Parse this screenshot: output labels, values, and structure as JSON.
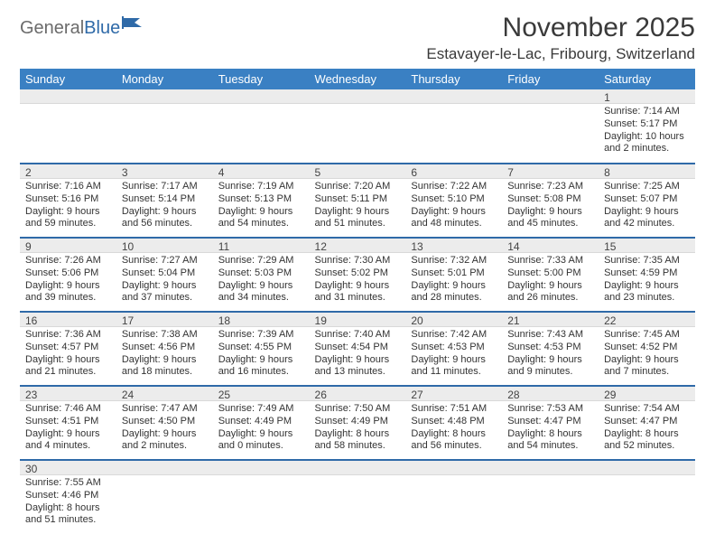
{
  "logo": {
    "general": "General",
    "blue": "Blue"
  },
  "title": "November 2025",
  "location": "Estavayer-le-Lac, Fribourg, Switzerland",
  "colors": {
    "header_bg": "#3a80c3",
    "header_text": "#ffffff",
    "daynum_bg": "#ececec",
    "week_border": "#2f6aa8",
    "title_color": "#3a3a3a",
    "logo_gray": "#6b6b6b",
    "logo_blue": "#2f6aa8"
  },
  "weekdays": [
    "Sunday",
    "Monday",
    "Tuesday",
    "Wednesday",
    "Thursday",
    "Friday",
    "Saturday"
  ],
  "weeks": [
    [
      {
        "blank": true
      },
      {
        "blank": true
      },
      {
        "blank": true
      },
      {
        "blank": true
      },
      {
        "blank": true
      },
      {
        "blank": true
      },
      {
        "day": "1",
        "sunrise": "Sunrise: 7:14 AM",
        "sunset": "Sunset: 5:17 PM",
        "daylight1": "Daylight: 10 hours",
        "daylight2": "and 2 minutes."
      }
    ],
    [
      {
        "day": "2",
        "sunrise": "Sunrise: 7:16 AM",
        "sunset": "Sunset: 5:16 PM",
        "daylight1": "Daylight: 9 hours",
        "daylight2": "and 59 minutes."
      },
      {
        "day": "3",
        "sunrise": "Sunrise: 7:17 AM",
        "sunset": "Sunset: 5:14 PM",
        "daylight1": "Daylight: 9 hours",
        "daylight2": "and 56 minutes."
      },
      {
        "day": "4",
        "sunrise": "Sunrise: 7:19 AM",
        "sunset": "Sunset: 5:13 PM",
        "daylight1": "Daylight: 9 hours",
        "daylight2": "and 54 minutes."
      },
      {
        "day": "5",
        "sunrise": "Sunrise: 7:20 AM",
        "sunset": "Sunset: 5:11 PM",
        "daylight1": "Daylight: 9 hours",
        "daylight2": "and 51 minutes."
      },
      {
        "day": "6",
        "sunrise": "Sunrise: 7:22 AM",
        "sunset": "Sunset: 5:10 PM",
        "daylight1": "Daylight: 9 hours",
        "daylight2": "and 48 minutes."
      },
      {
        "day": "7",
        "sunrise": "Sunrise: 7:23 AM",
        "sunset": "Sunset: 5:08 PM",
        "daylight1": "Daylight: 9 hours",
        "daylight2": "and 45 minutes."
      },
      {
        "day": "8",
        "sunrise": "Sunrise: 7:25 AM",
        "sunset": "Sunset: 5:07 PM",
        "daylight1": "Daylight: 9 hours",
        "daylight2": "and 42 minutes."
      }
    ],
    [
      {
        "day": "9",
        "sunrise": "Sunrise: 7:26 AM",
        "sunset": "Sunset: 5:06 PM",
        "daylight1": "Daylight: 9 hours",
        "daylight2": "and 39 minutes."
      },
      {
        "day": "10",
        "sunrise": "Sunrise: 7:27 AM",
        "sunset": "Sunset: 5:04 PM",
        "daylight1": "Daylight: 9 hours",
        "daylight2": "and 37 minutes."
      },
      {
        "day": "11",
        "sunrise": "Sunrise: 7:29 AM",
        "sunset": "Sunset: 5:03 PM",
        "daylight1": "Daylight: 9 hours",
        "daylight2": "and 34 minutes."
      },
      {
        "day": "12",
        "sunrise": "Sunrise: 7:30 AM",
        "sunset": "Sunset: 5:02 PM",
        "daylight1": "Daylight: 9 hours",
        "daylight2": "and 31 minutes."
      },
      {
        "day": "13",
        "sunrise": "Sunrise: 7:32 AM",
        "sunset": "Sunset: 5:01 PM",
        "daylight1": "Daylight: 9 hours",
        "daylight2": "and 28 minutes."
      },
      {
        "day": "14",
        "sunrise": "Sunrise: 7:33 AM",
        "sunset": "Sunset: 5:00 PM",
        "daylight1": "Daylight: 9 hours",
        "daylight2": "and 26 minutes."
      },
      {
        "day": "15",
        "sunrise": "Sunrise: 7:35 AM",
        "sunset": "Sunset: 4:59 PM",
        "daylight1": "Daylight: 9 hours",
        "daylight2": "and 23 minutes."
      }
    ],
    [
      {
        "day": "16",
        "sunrise": "Sunrise: 7:36 AM",
        "sunset": "Sunset: 4:57 PM",
        "daylight1": "Daylight: 9 hours",
        "daylight2": "and 21 minutes."
      },
      {
        "day": "17",
        "sunrise": "Sunrise: 7:38 AM",
        "sunset": "Sunset: 4:56 PM",
        "daylight1": "Daylight: 9 hours",
        "daylight2": "and 18 minutes."
      },
      {
        "day": "18",
        "sunrise": "Sunrise: 7:39 AM",
        "sunset": "Sunset: 4:55 PM",
        "daylight1": "Daylight: 9 hours",
        "daylight2": "and 16 minutes."
      },
      {
        "day": "19",
        "sunrise": "Sunrise: 7:40 AM",
        "sunset": "Sunset: 4:54 PM",
        "daylight1": "Daylight: 9 hours",
        "daylight2": "and 13 minutes."
      },
      {
        "day": "20",
        "sunrise": "Sunrise: 7:42 AM",
        "sunset": "Sunset: 4:53 PM",
        "daylight1": "Daylight: 9 hours",
        "daylight2": "and 11 minutes."
      },
      {
        "day": "21",
        "sunrise": "Sunrise: 7:43 AM",
        "sunset": "Sunset: 4:53 PM",
        "daylight1": "Daylight: 9 hours",
        "daylight2": "and 9 minutes."
      },
      {
        "day": "22",
        "sunrise": "Sunrise: 7:45 AM",
        "sunset": "Sunset: 4:52 PM",
        "daylight1": "Daylight: 9 hours",
        "daylight2": "and 7 minutes."
      }
    ],
    [
      {
        "day": "23",
        "sunrise": "Sunrise: 7:46 AM",
        "sunset": "Sunset: 4:51 PM",
        "daylight1": "Daylight: 9 hours",
        "daylight2": "and 4 minutes."
      },
      {
        "day": "24",
        "sunrise": "Sunrise: 7:47 AM",
        "sunset": "Sunset: 4:50 PM",
        "daylight1": "Daylight: 9 hours",
        "daylight2": "and 2 minutes."
      },
      {
        "day": "25",
        "sunrise": "Sunrise: 7:49 AM",
        "sunset": "Sunset: 4:49 PM",
        "daylight1": "Daylight: 9 hours",
        "daylight2": "and 0 minutes."
      },
      {
        "day": "26",
        "sunrise": "Sunrise: 7:50 AM",
        "sunset": "Sunset: 4:49 PM",
        "daylight1": "Daylight: 8 hours",
        "daylight2": "and 58 minutes."
      },
      {
        "day": "27",
        "sunrise": "Sunrise: 7:51 AM",
        "sunset": "Sunset: 4:48 PM",
        "daylight1": "Daylight: 8 hours",
        "daylight2": "and 56 minutes."
      },
      {
        "day": "28",
        "sunrise": "Sunrise: 7:53 AM",
        "sunset": "Sunset: 4:47 PM",
        "daylight1": "Daylight: 8 hours",
        "daylight2": "and 54 minutes."
      },
      {
        "day": "29",
        "sunrise": "Sunrise: 7:54 AM",
        "sunset": "Sunset: 4:47 PM",
        "daylight1": "Daylight: 8 hours",
        "daylight2": "and 52 minutes."
      }
    ],
    [
      {
        "day": "30",
        "sunrise": "Sunrise: 7:55 AM",
        "sunset": "Sunset: 4:46 PM",
        "daylight1": "Daylight: 8 hours",
        "daylight2": "and 51 minutes."
      },
      {
        "blank": true
      },
      {
        "blank": true
      },
      {
        "blank": true
      },
      {
        "blank": true
      },
      {
        "blank": true
      },
      {
        "blank": true
      }
    ]
  ]
}
